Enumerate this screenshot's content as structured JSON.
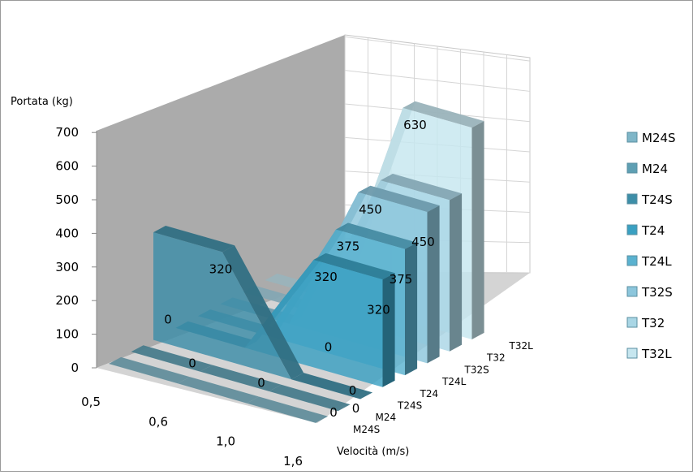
{
  "chart_data": {
    "type": "area",
    "title": "",
    "ylabel": "Portata (kg)",
    "xlabel": "Velocità (m/s)",
    "categories": [
      "0,5",
      "0,6",
      "1,0",
      "1,6"
    ],
    "y_ticks": [
      "0",
      "100",
      "200",
      "300",
      "400",
      "500",
      "600",
      "700"
    ],
    "ylim": [
      0,
      700
    ],
    "legend_position": "right",
    "series": [
      {
        "name": "M24S",
        "values": [
          0,
          0,
          0,
          0
        ],
        "color": "#7fb6c8"
      },
      {
        "name": "M24",
        "values": [
          0,
          0,
          0,
          0
        ],
        "color": "#5e9fb3"
      },
      {
        "name": "T24S",
        "values": [
          320,
          320,
          0,
          0
        ],
        "color": "#3d8ea8"
      },
      {
        "name": "T24",
        "values": [
          0,
          0,
          320,
          320
        ],
        "color": "#3aa0c2"
      },
      {
        "name": "T24L",
        "values": [
          0,
          0,
          375,
          375
        ],
        "color": "#5ab2d0"
      },
      {
        "name": "T32S",
        "values": [
          0,
          0,
          450,
          450
        ],
        "color": "#8cc6dc"
      },
      {
        "name": "T32",
        "values": [
          0,
          0,
          450,
          450
        ],
        "color": "#a9d6e5"
      },
      {
        "name": "T32L",
        "values": [
          0,
          0,
          630,
          630
        ],
        "color": "#c6e6ef"
      }
    ],
    "data_labels": {
      "M24S": "0",
      "M24": "0",
      "T24S": "320",
      "T24": "320",
      "T24L": "375",
      "T32S": "450",
      "T32": "450",
      "T32L": "630",
      "row_zero": [
        "0",
        "0",
        "0",
        "0",
        "0"
      ]
    }
  }
}
